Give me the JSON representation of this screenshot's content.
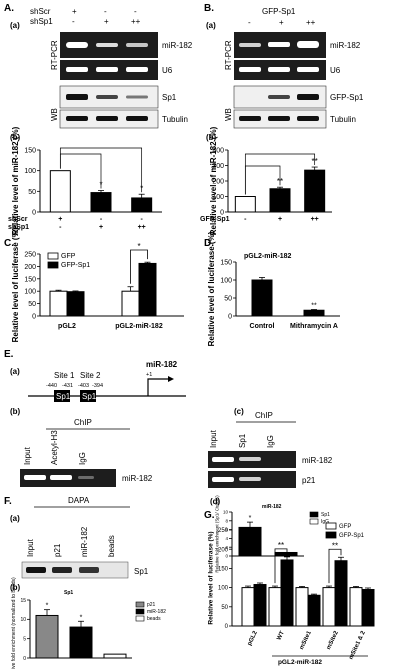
{
  "panels": {
    "A": {
      "label": "A.",
      "sub_a": "(a)",
      "sub_b": "(b)",
      "rows": {
        "row1": "shScr",
        "row2": "shSp1",
        "row1_signs": [
          "+",
          "-",
          "-"
        ],
        "row2_signs": [
          "-",
          "+",
          "++"
        ]
      },
      "blot_labels": [
        "miR-182",
        "U6",
        "Sp1",
        "Tubulin"
      ],
      "side_labels": [
        "RT-PCR",
        "WB"
      ]
    },
    "B": {
      "label": "B.",
      "sub_a": "(a)",
      "sub_b": "(b)",
      "header": "GFP-Sp1",
      "signs": [
        "-",
        "+",
        "++"
      ],
      "blot_labels": [
        "miR-182",
        "U6",
        "GFP-Sp1",
        "Tubulin"
      ],
      "side_labels": [
        "RT-PCR",
        "WB"
      ]
    },
    "C": {
      "label": "C."
    },
    "D": {
      "label": "D."
    },
    "E": {
      "label": "E.",
      "sub_a": "(a)",
      "sub_b": "(b)",
      "sub_c": "(c)",
      "sub_d": "(d)",
      "gene": "miR-182",
      "tss": "+1",
      "sites": [
        "Site 1",
        "Site 2"
      ],
      "positions": [
        "-440",
        "-431",
        "-403",
        "-394"
      ],
      "box_label": "Sp1",
      "chip_label": "ChIP",
      "lanes_b": [
        "Input",
        "Acetyl-H3",
        "IgG"
      ],
      "blot_b": "miR-182",
      "lanes_c": [
        "Input",
        "Sp1",
        "IgG"
      ],
      "blots_c": [
        "miR-182",
        "p21"
      ]
    },
    "F": {
      "label": "F.",
      "sub_a": "(a)",
      "sub_b": "(b)",
      "dapa_label": "DAPA",
      "lanes": [
        "Input",
        "p21",
        "miR-182",
        "beads"
      ],
      "blot": "Sp1"
    },
    "G": {
      "label": "G."
    }
  },
  "chart_data": [
    {
      "id": "A-b",
      "type": "bar",
      "categories": [
        "shScr +",
        "shSp1 +",
        "shSp1 ++"
      ],
      "values": [
        100,
        47,
        34
      ],
      "errors": [
        0,
        5,
        9
      ],
      "ylabel": "Relative level of miR-182 (%)",
      "ylim": [
        0,
        150
      ],
      "yticks": [
        "0",
        "50",
        "100",
        "150"
      ],
      "xrows": [
        {
          "label": "shScr",
          "signs": [
            "+",
            "-",
            "-"
          ]
        },
        {
          "label": "shSp1",
          "signs": [
            "-",
            "+",
            "++"
          ]
        }
      ],
      "significance": [
        "*",
        "*"
      ],
      "colors": [
        "#ffffff",
        "#000000",
        "#000000"
      ]
    },
    {
      "id": "B-b",
      "type": "bar",
      "categories": [
        "-",
        "+",
        "++"
      ],
      "values": [
        100,
        150,
        270
      ],
      "errors": [
        0,
        10,
        20
      ],
      "ylabel": "Relative level of miR-182 (%)",
      "ylim": [
        0,
        400
      ],
      "yticks": [
        "0",
        "100",
        "200",
        "300",
        "400"
      ],
      "xrows": [
        {
          "label": "GFP-Sp1",
          "signs": [
            "-",
            "+",
            "++"
          ]
        }
      ],
      "significance": [
        "**",
        "**"
      ],
      "colors": [
        "#ffffff",
        "#000000",
        "#000000"
      ]
    },
    {
      "id": "C",
      "type": "bar",
      "categories": [
        "pGL2",
        "pGL2-miR-182"
      ],
      "series": [
        {
          "name": "GFP",
          "values": [
            100,
            100
          ],
          "errors": [
            4,
            18
          ],
          "color": "#ffffff"
        },
        {
          "name": "GFP-Sp1",
          "values": [
            98,
            212
          ],
          "errors": [
            3,
            5
          ],
          "color": "#000000"
        }
      ],
      "ylabel": "Relative level of luciferase (%)",
      "ylim": [
        0,
        250
      ],
      "yticks": [
        "0",
        "50",
        "100",
        "150",
        "200",
        "250"
      ],
      "significance": [
        "*"
      ]
    },
    {
      "id": "D",
      "type": "bar",
      "title": "pGL2-miR-182",
      "categories": [
        "Control",
        "Mithramycin A"
      ],
      "values": [
        100,
        16
      ],
      "errors": [
        7,
        2
      ],
      "ylabel": "Relative level of luciferase (%)",
      "ylim": [
        0,
        150
      ],
      "yticks": [
        "0",
        "50",
        "100",
        "150"
      ],
      "significance": [
        "**"
      ],
      "colors": [
        "#000000",
        "#000000"
      ]
    },
    {
      "id": "E-d",
      "type": "bar",
      "title": "miR-182",
      "categories": [
        "Sp1",
        "IgG"
      ],
      "values": [
        6.5,
        0.8
      ],
      "errors": [
        1.2,
        0
      ],
      "ylabel": "Relative fold enrichment (Sp1/ CtrlIgG)",
      "ylim": [
        0,
        10
      ],
      "yticks": [
        "0",
        "2",
        "4",
        "6",
        "8",
        "10"
      ],
      "legend": [
        {
          "name": "Sp1",
          "color": "#000000"
        },
        {
          "name": "IgG",
          "color": "#ffffff"
        }
      ],
      "significance": [
        "*"
      ]
    },
    {
      "id": "F-b",
      "type": "bar",
      "title": "Sp1",
      "categories": [
        "p21",
        "miR-182",
        "beads"
      ],
      "values": [
        11,
        8,
        1
      ],
      "errors": [
        1.5,
        1.5,
        0
      ],
      "ylabel": "Relative fold enrichment (normalized to beads)",
      "ylim": [
        0,
        15
      ],
      "yticks": [
        "0",
        "5",
        "10",
        "15"
      ],
      "legend": [
        {
          "name": "p21",
          "color": "#888888"
        },
        {
          "name": "miR-182",
          "color": "#000000"
        },
        {
          "name": "beads",
          "color": "#ffffff"
        }
      ],
      "colors": [
        "#888888",
        "#000000",
        "#ffffff"
      ],
      "significance": [
        "*",
        "*"
      ]
    },
    {
      "id": "G",
      "type": "bar",
      "categories": [
        "pGL2",
        "WT",
        "mSite1",
        "mSite2",
        "mSite1 & 2"
      ],
      "xlabel": "pGL2-miR-182",
      "series": [
        {
          "name": "GFP",
          "values": [
            100,
            100,
            100,
            100,
            100
          ],
          "errors": [
            4,
            4,
            3,
            4,
            3
          ],
          "color": "#ffffff"
        },
        {
          "name": "GFP-Sp1",
          "values": [
            108,
            172,
            80,
            170,
            95
          ],
          "errors": [
            4,
            8,
            3,
            9,
            4
          ],
          "color": "#000000"
        }
      ],
      "ylabel": "Relative level of luciferase (%)",
      "ylim": [
        0,
        250
      ],
      "yticks": [
        "0",
        "50",
        "100",
        "150",
        "200",
        "250"
      ],
      "significance": [
        "**",
        "**"
      ]
    }
  ]
}
